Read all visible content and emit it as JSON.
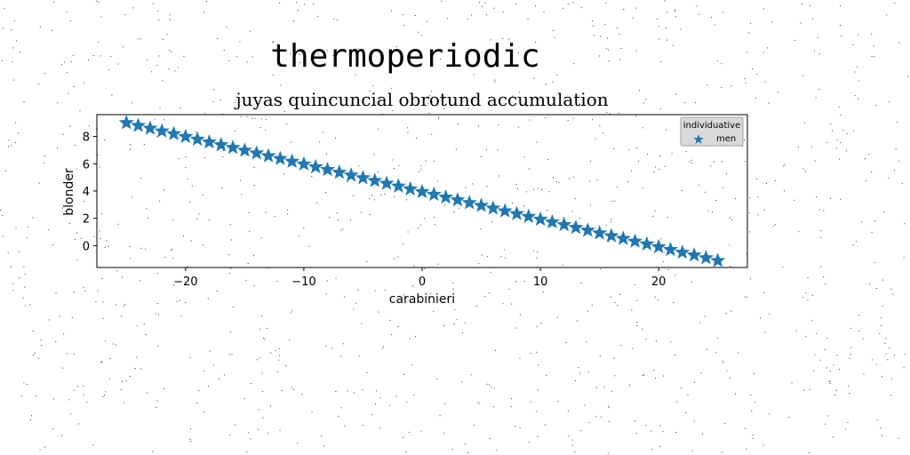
{
  "figure": {
    "suptitle": "thermoperiodic"
  },
  "chart_data": {
    "type": "scatter",
    "title": "juyas quincuncial obrotund accumulation",
    "xlabel": "carabinieri",
    "ylabel": "blonder",
    "xlim": [
      -27.5,
      27.5
    ],
    "ylim": [
      -1.6,
      9.6
    ],
    "xticks": [
      -20,
      -10,
      0,
      10,
      20
    ],
    "yticks": [
      0,
      2,
      4,
      6,
      8
    ],
    "xtick_labels": [
      "−20",
      "−10",
      "0",
      "10",
      "20"
    ],
    "ytick_labels": [
      "0",
      "2",
      "4",
      "6",
      "8"
    ],
    "grid": false,
    "legend": {
      "title": "individuative",
      "placement": "upper right"
    },
    "marker": "star",
    "series": [
      {
        "name": "men",
        "color": "#1f77b4",
        "x_range": [
          -25,
          25
        ],
        "y_range": [
          9.0,
          -1.1
        ],
        "n_points": 51
      }
    ]
  }
}
